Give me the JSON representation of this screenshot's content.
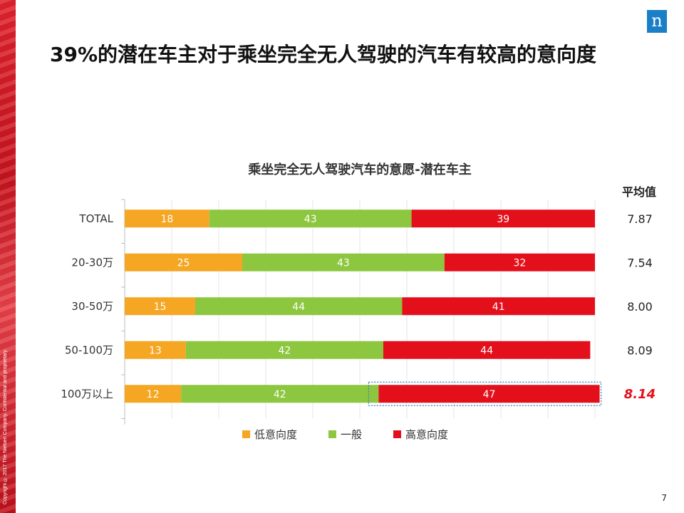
{
  "slide": {
    "title": "39%的潜在车主对于乘坐完全无人驾驶的汽车有较高的意向度",
    "logo_text": "n",
    "page_number": "7",
    "copyright": "Copyright © 2017 The Nielsen Company. Confidential and proprietary."
  },
  "colors": {
    "low": "#f5a623",
    "neutral": "#8dc63f",
    "high": "#e3101c",
    "brand": "#1a7fc6",
    "highlight_avg": "#e3101c"
  },
  "chart_data": {
    "type": "bar",
    "orientation": "horizontal",
    "stacked": true,
    "title": "乘坐完全无人驾驶汽车的意愿-潜在车主",
    "categories": [
      "TOTAL",
      "20-30万",
      "30-50万",
      "50-100万",
      "100万以上"
    ],
    "series": [
      {
        "name": "低意向度",
        "values": [
          18,
          25,
          15,
          13,
          12
        ]
      },
      {
        "name": "一般",
        "values": [
          43,
          43,
          44,
          42,
          42
        ]
      },
      {
        "name": "高意向度",
        "values": [
          39,
          32,
          41,
          44,
          47
        ]
      }
    ],
    "xlim": [
      0,
      100
    ],
    "grid": "vertical",
    "legend_position": "bottom",
    "side_column": {
      "header": "平均值",
      "values": [
        "7.87",
        "7.54",
        "8.00",
        "8.09",
        "8.14"
      ],
      "highlighted_index": 4
    },
    "highlighted_segment": {
      "category_index": 4,
      "series_index": 2
    }
  }
}
